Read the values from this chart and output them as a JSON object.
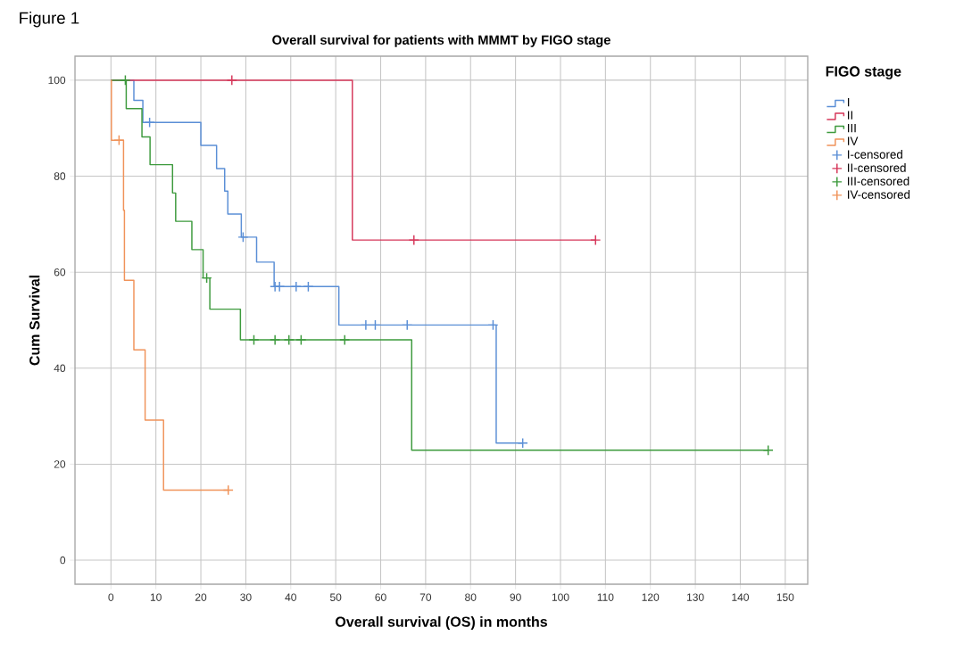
{
  "chart_data": {
    "type": "step",
    "title": "Overall survival for patients with MMMT by FIGO stage",
    "xlabel": "Overall survival (OS) in months",
    "ylabel": "Cum Survival",
    "legend_title": "FIGO stage",
    "annotations": [
      "Figure 1"
    ],
    "xlim": [
      -8,
      155
    ],
    "ylim": [
      -5,
      105
    ],
    "xticks": [
      0,
      10,
      20,
      30,
      40,
      50,
      60,
      70,
      80,
      90,
      100,
      110,
      120,
      130,
      140,
      150
    ],
    "yticks": [
      0,
      20,
      40,
      60,
      80,
      100
    ],
    "grid": true,
    "legend": "top right",
    "series": [
      {
        "name": "I",
        "color": "#5b8fd6",
        "x": [
          0,
          5.1,
          7.1,
          20.0,
          23.5,
          25.3,
          26.0,
          29.0,
          32.4,
          36.3,
          50.7,
          85.7,
          91.6
        ],
        "values": [
          100,
          95.8,
          91.2,
          86.4,
          81.6,
          76.9,
          72.1,
          67.3,
          62.1,
          57.0,
          49.0,
          24.4,
          24.4
        ]
      },
      {
        "name": "II",
        "color": "#d6375a",
        "x": [
          0,
          53.7,
          107.8
        ],
        "values": [
          100,
          66.7,
          66.7
        ]
      },
      {
        "name": "III",
        "color": "#3d9a3d",
        "x": [
          0,
          3.4,
          6.9,
          8.7,
          13.7,
          14.4,
          18.0,
          20.5,
          22.0,
          28.8,
          66.9,
          146.2
        ],
        "values": [
          100,
          94.1,
          88.2,
          82.4,
          76.5,
          70.6,
          64.7,
          58.8,
          52.3,
          45.9,
          22.9,
          22.9
        ]
      },
      {
        "name": "IV",
        "color": "#f0935a",
        "x": [
          0,
          0.1,
          2.8,
          3.0,
          5.1,
          7.6,
          11.7,
          26.1
        ],
        "values": [
          100,
          87.5,
          72.9,
          58.3,
          43.8,
          29.2,
          14.6,
          14.6
        ]
      },
      {
        "name": "I-censored",
        "type": "scatter",
        "marker": "cross",
        "color": "#5b8fd6",
        "x": [
          8.6,
          29.4,
          36.5,
          37.5,
          41.2,
          43.9,
          56.7,
          58.8,
          65.9,
          85.0,
          91.6
        ],
        "values": [
          91.2,
          67.3,
          57.0,
          57.0,
          57.0,
          57.0,
          49.0,
          49.0,
          49.0,
          49.0,
          24.4
        ]
      },
      {
        "name": "II-censored",
        "type": "scatter",
        "marker": "cross",
        "color": "#d6375a",
        "x": [
          26.9,
          67.4,
          107.8
        ],
        "values": [
          100,
          66.7,
          66.7
        ]
      },
      {
        "name": "III-censored",
        "type": "scatter",
        "marker": "cross",
        "color": "#3d9a3d",
        "x": [
          3.2,
          21.3,
          31.8,
          36.5,
          39.6,
          42.3,
          52.0,
          146.2
        ],
        "values": [
          100,
          58.8,
          45.9,
          45.9,
          45.9,
          45.9,
          45.9,
          22.9
        ]
      },
      {
        "name": "IV-censored",
        "type": "scatter",
        "marker": "cross",
        "color": "#f0935a",
        "x": [
          1.8,
          26.1
        ],
        "values": [
          87.5,
          14.6
        ]
      }
    ]
  }
}
